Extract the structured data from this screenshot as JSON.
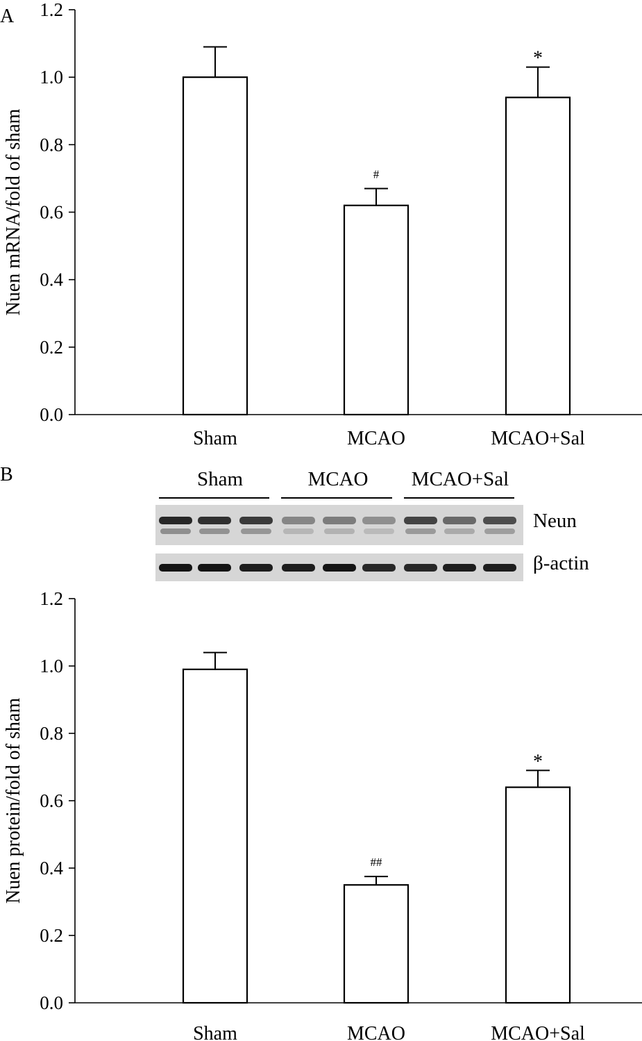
{
  "chart_data": [
    {
      "panel": "A",
      "type": "bar",
      "categories": [
        "Sham",
        "MCAO",
        "MCAO+Sal"
      ],
      "values": [
        1.0,
        0.62,
        0.94
      ],
      "errors": [
        0.09,
        0.05,
        0.09
      ],
      "annotations": [
        "",
        "#",
        "*"
      ],
      "title": "",
      "xlabel": "",
      "ylabel": "Nuen mRNA/fold of sham",
      "ylim": [
        0,
        1.2
      ],
      "yticks": [
        "0.0",
        "0.2",
        "0.4",
        "0.6",
        "0.8",
        "1.0",
        "1.2"
      ],
      "grid": false
    },
    {
      "panel": "B",
      "type": "bar",
      "categories": [
        "Sham",
        "MCAO",
        "MCAO+Sal"
      ],
      "values": [
        0.99,
        0.35,
        0.64
      ],
      "errors": [
        0.05,
        0.025,
        0.05
      ],
      "annotations": [
        "",
        "##",
        "*"
      ],
      "title": "",
      "xlabel": "",
      "ylabel": "Nuen protein/fold of sham",
      "ylim": [
        0,
        1.2
      ],
      "yticks": [
        "0.0",
        "0.2",
        "0.4",
        "0.6",
        "0.8",
        "1.0",
        "1.2"
      ],
      "grid": false
    }
  ],
  "blot": {
    "groups": [
      "Sham",
      "MCAO",
      "MCAO+Sal"
    ],
    "rows": [
      {
        "label": "Neun",
        "intensities": [
          0.85,
          0.8,
          0.75,
          0.35,
          0.4,
          0.3,
          0.7,
          0.5,
          0.65
        ]
      },
      {
        "label": "β-actin",
        "intensities": [
          0.95,
          0.95,
          0.9,
          0.9,
          0.95,
          0.85,
          0.85,
          0.9,
          0.9
        ]
      }
    ]
  }
}
